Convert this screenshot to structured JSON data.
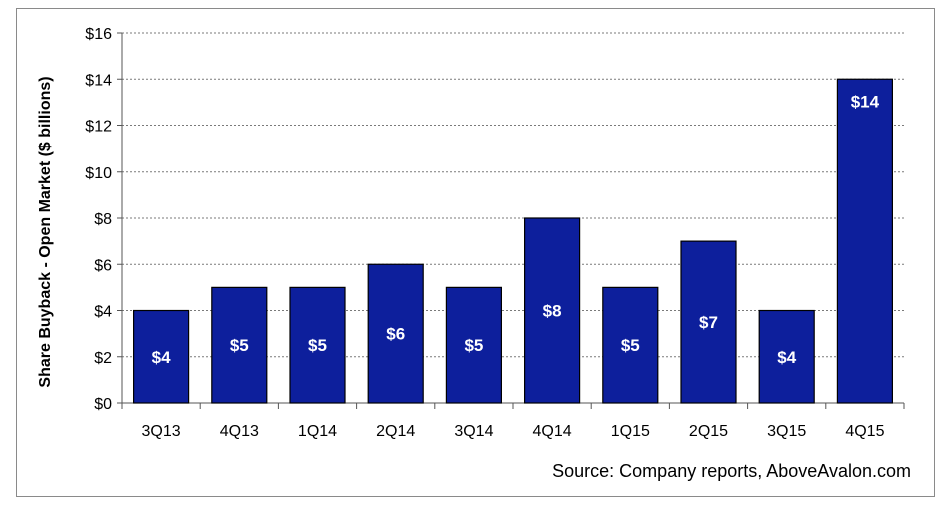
{
  "chart_data": {
    "type": "bar",
    "categories": [
      "3Q13",
      "4Q13",
      "1Q14",
      "2Q14",
      "3Q14",
      "4Q14",
      "1Q15",
      "2Q15",
      "3Q15",
      "4Q15"
    ],
    "values": [
      4,
      5,
      5,
      6,
      5,
      8,
      5,
      7,
      4,
      14
    ],
    "data_labels": [
      "$4",
      "$5",
      "$5",
      "$6",
      "$5",
      "$8",
      "$5",
      "$7",
      "$4",
      "$14"
    ],
    "ylabel": "Share Buyback - Open Market ($ billions)",
    "xlabel": "",
    "ylim": [
      0,
      16
    ],
    "y_ticks": [
      0,
      2,
      4,
      6,
      8,
      10,
      12,
      14,
      16
    ],
    "y_tick_labels": [
      "$0",
      "$2",
      "$4",
      "$6",
      "$8",
      "$10",
      "$12",
      "$14",
      "$16"
    ],
    "grid": true,
    "bar_color": "#0d1f9c",
    "source": "Source: Company reports, AboveAvalon.com"
  }
}
